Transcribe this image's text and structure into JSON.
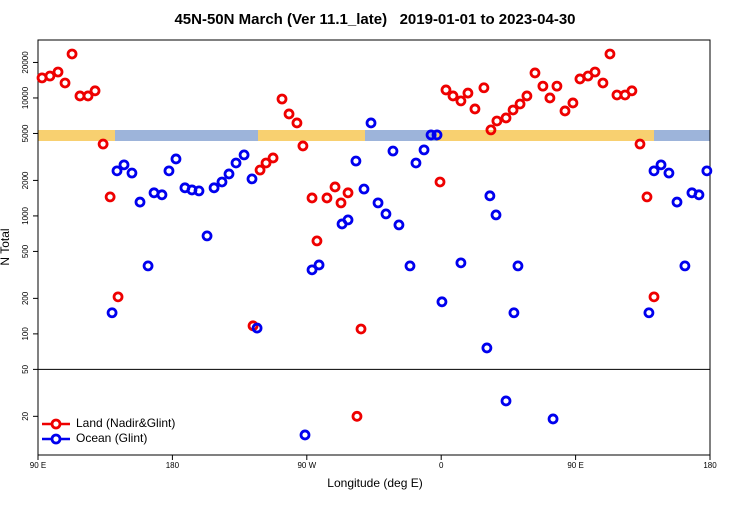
{
  "chart_data": {
    "type": "scatter",
    "title": "45N-50N March (Ver 11.1_late)   2019-01-01 to 2023-04-30",
    "xlabel": "Longitude (deg E)",
    "ylabel": "N Total",
    "xlim": [
      90,
      540
    ],
    "xticks": [
      {
        "value": 90,
        "label": "90 E"
      },
      {
        "value": 180,
        "label": "180"
      },
      {
        "value": 270,
        "label": "90 W"
      },
      {
        "value": 360,
        "label": "0"
      },
      {
        "value": 450,
        "label": "90 E"
      },
      {
        "value": 540,
        "label": "180"
      }
    ],
    "ylim": [
      9.4,
      31000
    ],
    "log_y": true,
    "yticks": [
      20,
      50,
      100,
      200,
      500,
      1000,
      2000,
      5000,
      10000,
      20000
    ],
    "hline": 50,
    "legend": "lower left",
    "series": [
      {
        "name": "Land (Nadir&Glint)",
        "color": "#ee0000",
        "x": [
          92.7,
          98.0,
          103.4,
          108.1,
          112.8,
          118.1,
          123.5,
          128.2,
          133.6,
          138.3,
          143.6,
          234.0,
          238.7,
          242.7,
          247.4,
          253.4,
          258.1,
          263.4,
          267.4,
          273.5,
          276.8,
          283.5,
          288.9,
          292.9,
          297.6,
          303.6,
          306.3,
          359.2,
          363.2,
          367.9,
          373.2,
          377.9,
          382.6,
          388.6,
          393.3,
          397.3,
          403.4,
          408.1,
          412.8,
          417.4,
          422.8,
          428.1,
          432.8,
          437.5,
          442.9,
          448.2,
          452.9,
          458.3,
          463.0,
          468.3,
          473.0,
          477.7,
          483.1,
          487.7,
          493.1,
          497.8,
          502.5
        ],
        "values": [
          14800,
          15350,
          16600,
          13400,
          23600,
          10400,
          10400,
          11500,
          4070,
          1450,
          206,
          117,
          2450,
          2810,
          3100,
          9800,
          7320,
          6140,
          3920,
          1420,
          614,
          1420,
          1760,
          1290,
          1570,
          20,
          110,
          1940,
          11700,
          10400,
          9440,
          11000,
          8070,
          12200,
          5360,
          6380,
          6770,
          7910,
          8890,
          10400,
          16300,
          12600,
          10000,
          12600,
          7760,
          9070,
          14500,
          15350,
          16600,
          13400,
          23600,
          10600,
          10600,
          11500,
          4070,
          1450,
          206
        ]
      },
      {
        "name": "Ocean (Glint)",
        "color": "#0000ee",
        "x": [
          139.6,
          142.9,
          147.6,
          152.9,
          158.3,
          163.7,
          167.7,
          173.0,
          177.7,
          182.4,
          188.4,
          193.1,
          197.8,
          203.2,
          207.9,
          213.2,
          217.9,
          222.6,
          228.0,
          233.3,
          236.7,
          268.8,
          273.5,
          278.2,
          293.6,
          297.6,
          302.9,
          308.3,
          313.0,
          317.7,
          323.0,
          327.7,
          331.7,
          339.1,
          343.1,
          348.5,
          353.2,
          357.2,
          360.5,
          373.2,
          390.6,
          392.6,
          396.7,
          403.4,
          408.7,
          411.4,
          434.9,
          499.1,
          502.5,
          507.2,
          512.5,
          517.9,
          523.2,
          527.9,
          532.6,
          537.9
        ],
        "values": [
          151,
          2410,
          2710,
          2310,
          1310,
          377,
          1570,
          1510,
          2410,
          3040,
          1730,
          1660,
          1630,
          677,
          1730,
          1940,
          2270,
          2810,
          3290,
          2060,
          112,
          13.9,
          349,
          384,
          855,
          925,
          2920,
          1690,
          6140,
          1290,
          1040,
          3550,
          839,
          377,
          2810,
          3630,
          4860,
          4860,
          187,
          400,
          76,
          1480,
          1020,
          27,
          151,
          377,
          19,
          151,
          2410,
          2710,
          2310,
          1310,
          377,
          1570,
          1510,
          2410
        ]
      }
    ]
  }
}
